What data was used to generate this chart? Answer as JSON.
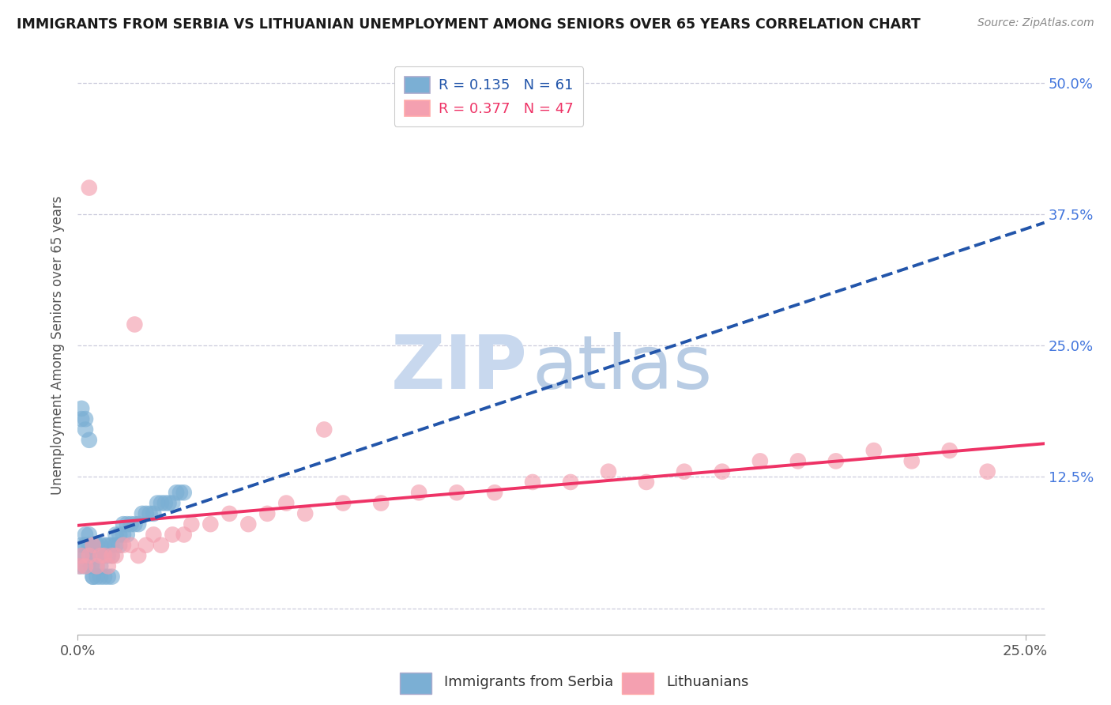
{
  "title": "IMMIGRANTS FROM SERBIA VS LITHUANIAN UNEMPLOYMENT AMONG SENIORS OVER 65 YEARS CORRELATION CHART",
  "source": "Source: ZipAtlas.com",
  "ylabel": "Unemployment Among Seniors over 65 years",
  "xlim": [
    0.0,
    0.255
  ],
  "ylim": [
    -0.025,
    0.525
  ],
  "R_blue": 0.135,
  "N_blue": 61,
  "R_pink": 0.377,
  "N_pink": 47,
  "blue_color": "#7BAFD4",
  "pink_color": "#F4A0B0",
  "blue_line_color": "#2255AA",
  "pink_line_color": "#EE3366",
  "watermark_zip": "ZIP",
  "watermark_atlas": "atlas",
  "watermark_color_zip": "#C8D8EE",
  "watermark_color_atlas": "#B8CCE4",
  "legend_label_blue": "Immigrants from Serbia",
  "legend_label_pink": "Lithuanians",
  "blue_scatter_x": [
    0.0005,
    0.001,
    0.001,
    0.0015,
    0.002,
    0.002,
    0.002,
    0.0025,
    0.003,
    0.003,
    0.003,
    0.0035,
    0.004,
    0.004,
    0.004,
    0.005,
    0.005,
    0.005,
    0.006,
    0.006,
    0.006,
    0.007,
    0.007,
    0.008,
    0.008,
    0.009,
    0.009,
    0.01,
    0.01,
    0.011,
    0.011,
    0.012,
    0.012,
    0.013,
    0.013,
    0.014,
    0.015,
    0.016,
    0.017,
    0.018,
    0.019,
    0.02,
    0.021,
    0.022,
    0.023,
    0.024,
    0.025,
    0.026,
    0.027,
    0.028,
    0.001,
    0.001,
    0.002,
    0.002,
    0.003,
    0.004,
    0.005,
    0.006,
    0.007,
    0.008,
    0.009
  ],
  "blue_scatter_y": [
    0.04,
    0.05,
    0.06,
    0.04,
    0.05,
    0.06,
    0.07,
    0.04,
    0.05,
    0.06,
    0.07,
    0.04,
    0.05,
    0.06,
    0.03,
    0.04,
    0.05,
    0.06,
    0.04,
    0.05,
    0.06,
    0.05,
    0.06,
    0.05,
    0.06,
    0.05,
    0.06,
    0.06,
    0.07,
    0.06,
    0.07,
    0.07,
    0.08,
    0.07,
    0.08,
    0.08,
    0.08,
    0.08,
    0.09,
    0.09,
    0.09,
    0.09,
    0.1,
    0.1,
    0.1,
    0.1,
    0.1,
    0.11,
    0.11,
    0.11,
    0.18,
    0.19,
    0.17,
    0.18,
    0.16,
    0.03,
    0.03,
    0.03,
    0.03,
    0.03,
    0.03
  ],
  "pink_scatter_x": [
    0.0005,
    0.001,
    0.002,
    0.003,
    0.004,
    0.005,
    0.006,
    0.007,
    0.008,
    0.009,
    0.01,
    0.012,
    0.014,
    0.016,
    0.018,
    0.02,
    0.022,
    0.025,
    0.028,
    0.03,
    0.035,
    0.04,
    0.045,
    0.05,
    0.055,
    0.06,
    0.065,
    0.07,
    0.08,
    0.09,
    0.1,
    0.11,
    0.12,
    0.13,
    0.14,
    0.15,
    0.16,
    0.17,
    0.18,
    0.19,
    0.2,
    0.21,
    0.22,
    0.23,
    0.24,
    0.003,
    0.015
  ],
  "pink_scatter_y": [
    0.04,
    0.05,
    0.04,
    0.05,
    0.06,
    0.04,
    0.05,
    0.05,
    0.04,
    0.05,
    0.05,
    0.06,
    0.06,
    0.05,
    0.06,
    0.07,
    0.06,
    0.07,
    0.07,
    0.08,
    0.08,
    0.09,
    0.08,
    0.09,
    0.1,
    0.09,
    0.17,
    0.1,
    0.1,
    0.11,
    0.11,
    0.11,
    0.12,
    0.12,
    0.13,
    0.12,
    0.13,
    0.13,
    0.14,
    0.14,
    0.14,
    0.15,
    0.14,
    0.15,
    0.13,
    0.4,
    0.27
  ]
}
